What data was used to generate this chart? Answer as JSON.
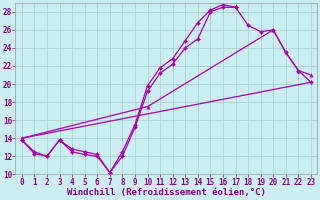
{
  "background_color": "#cbeef3",
  "grid_color": "#a0cccc",
  "line_color": "#aa00aa",
  "xlim": [
    -0.5,
    23.5
  ],
  "ylim": [
    10,
    29
  ],
  "xticks": [
    0,
    1,
    2,
    3,
    4,
    5,
    6,
    7,
    8,
    9,
    10,
    11,
    12,
    13,
    14,
    15,
    16,
    17,
    18,
    19,
    20,
    21,
    22,
    23
  ],
  "yticks": [
    10,
    12,
    14,
    16,
    18,
    20,
    22,
    24,
    26,
    28
  ],
  "xlabel": "Windchill (Refroidissement éolien,°C)",
  "font_color": "#880088",
  "tick_fontsize": 5.5,
  "label_fontsize": 6.5,
  "line1_x": [
    0,
    1,
    2,
    3,
    4,
    5,
    6,
    7,
    8,
    9,
    10,
    11,
    12,
    13,
    14,
    15,
    16,
    17,
    18,
    19,
    20,
    21,
    22,
    23
  ],
  "line1_y": [
    13.8,
    12.3,
    12.0,
    13.8,
    12.5,
    12.2,
    12.0,
    10.2,
    12.0,
    15.2,
    19.2,
    21.2,
    22.2,
    24.0,
    25.0,
    28.0,
    28.5,
    28.5,
    26.5,
    25.8,
    26.0,
    23.5,
    21.5,
    20.2
  ],
  "line2_x": [
    0,
    1,
    2,
    3,
    4,
    5,
    6,
    7,
    8,
    9,
    10,
    11,
    12,
    13,
    14,
    15,
    16,
    17
  ],
  "line2_y": [
    13.8,
    12.5,
    12.0,
    13.8,
    12.8,
    12.5,
    12.2,
    10.2,
    12.5,
    15.5,
    19.8,
    21.8,
    22.8,
    24.8,
    26.8,
    28.2,
    28.8,
    28.5
  ],
  "line3_x": [
    0,
    23
  ],
  "line3_y": [
    14.0,
    20.2
  ],
  "line4_x": [
    0,
    10,
    20,
    21,
    22,
    23
  ],
  "line4_y": [
    14.0,
    17.5,
    26.0,
    23.5,
    21.5,
    21.0
  ]
}
